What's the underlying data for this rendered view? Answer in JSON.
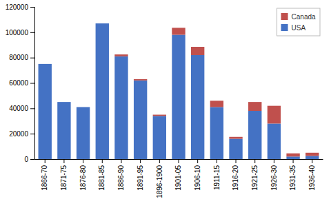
{
  "chart_data": {
    "type": "bar",
    "stacked": true,
    "categories": [
      "1866-70",
      "1871-75",
      "1876-80",
      "1881-85",
      "1886-90",
      "1891-95",
      "1896-1900",
      "1901-05",
      "1906-10",
      "1911-15",
      "1916-20",
      "1921-25",
      "1926-30",
      "1931-35",
      "1936-40"
    ],
    "series": [
      {
        "name": "USA",
        "color": "#4472C4",
        "values": [
          75000,
          45000,
          41000,
          107000,
          81000,
          62000,
          34000,
          98000,
          82000,
          41000,
          16000,
          38000,
          28000,
          2000,
          2500
        ]
      },
      {
        "name": "Canada",
        "color": "#C0504D",
        "values": [
          0,
          0,
          0,
          0,
          1500,
          1000,
          1000,
          5500,
          6500,
          5000,
          1500,
          7000,
          14000,
          2500,
          2500
        ]
      }
    ],
    "ylim": [
      0,
      120000
    ],
    "yticks": [
      0,
      20000,
      40000,
      60000,
      80000,
      100000,
      120000
    ],
    "grid": false,
    "legend": "upper right"
  }
}
